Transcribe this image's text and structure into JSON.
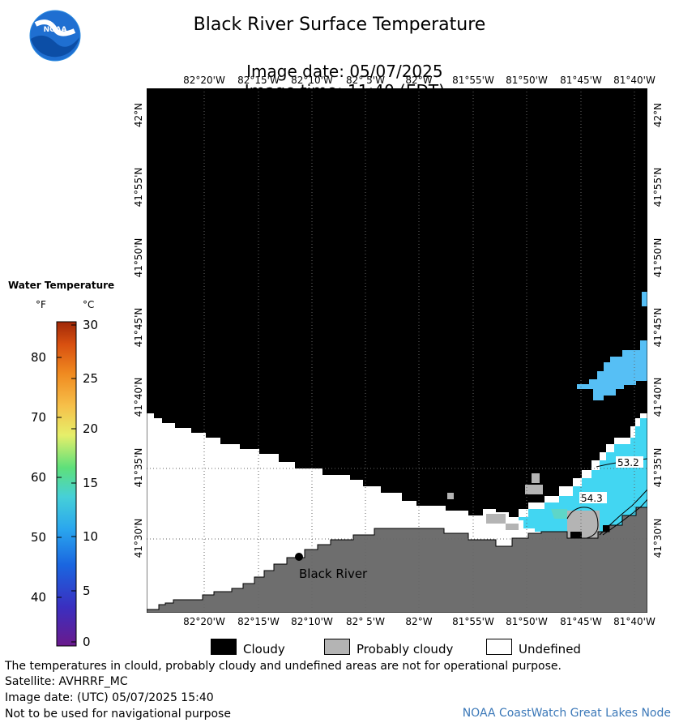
{
  "header": {
    "title": "Black River Surface Temperature",
    "image_date": "Image date: 05/07/2025",
    "image_time": "Image time: 11:40 (EDT)"
  },
  "logo": {
    "text": "NOAA",
    "icon": "noaa-logo-icon"
  },
  "map": {
    "lon_labels": [
      "82°20'W",
      "82°15'W",
      "82°10'W",
      "82° 5'W",
      "82°W",
      "81°55'W",
      "81°50'W",
      "81°45'W",
      "81°40'W"
    ],
    "lat_labels": [
      "42°N",
      "41°55'N",
      "41°50'N",
      "41°45'N",
      "41°40'N",
      "41°35'N",
      "41°30'N"
    ],
    "place_label": "Black River",
    "contour_labels": [
      "53.2",
      "54.3"
    ],
    "colors": {
      "cloud": "#000000",
      "land": "#6e6e6e",
      "probably_cloudy": "#b4b4b4",
      "undefined": "#ffffff",
      "warm_water": "#42d6f2",
      "cool_water": "#56bff5"
    }
  },
  "legend": {
    "title": "Water Temperature",
    "unit_f": "°F",
    "unit_c": "°C",
    "f_ticks": [
      "80",
      "70",
      "60",
      "50",
      "40"
    ],
    "c_ticks": [
      "30",
      "25",
      "20",
      "15",
      "10",
      "5",
      "0"
    ]
  },
  "key": [
    {
      "label": "Cloudy",
      "color": "#000000"
    },
    {
      "label": "Probably cloudy",
      "color": "#b4b4b4"
    },
    {
      "label": "Undefined",
      "color": "#ffffff"
    }
  ],
  "footer": {
    "disclaimer": "The temperatures in clould, probably cloudy and undefined areas are not for operational purpose.",
    "satellite": "Satellite: AVHRRF_MC",
    "utc_date": "Image date: (UTC) 05/07/2025  15:40",
    "navigation": "Not to be used for navigational purpose",
    "credit": "NOAA CoastWatch Great Lakes Node"
  }
}
